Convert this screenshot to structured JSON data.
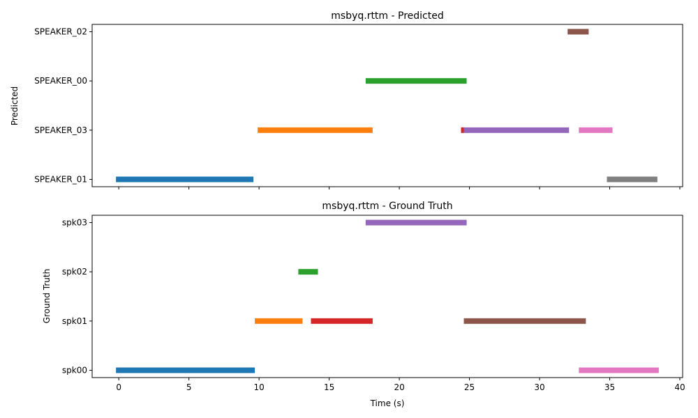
{
  "chart_data": [
    {
      "type": "timeline",
      "title": "msbyq.rttm - Predicted",
      "ylabel": "Predicted",
      "xlabel": "",
      "show_x_tick_labels": false,
      "xlim": [
        -1.9,
        40.2
      ],
      "x_ticks": [
        0,
        5,
        10,
        15,
        20,
        25,
        30,
        35,
        40
      ],
      "categories": [
        "SPEAKER_01",
        "SPEAKER_03",
        "SPEAKER_00",
        "SPEAKER_02"
      ],
      "segments": [
        {
          "speaker": "SPEAKER_01",
          "start": -0.2,
          "end": 9.6,
          "color": "#1f77b4"
        },
        {
          "speaker": "SPEAKER_03",
          "start": 9.9,
          "end": 18.1,
          "color": "#ff7f0e"
        },
        {
          "speaker": "SPEAKER_00",
          "start": 17.6,
          "end": 24.8,
          "color": "#2ca02c"
        },
        {
          "speaker": "SPEAKER_03",
          "start": 24.4,
          "end": 24.6,
          "color": "#d62728"
        },
        {
          "speaker": "SPEAKER_03",
          "start": 24.6,
          "end": 32.1,
          "color": "#9467bd"
        },
        {
          "speaker": "SPEAKER_02",
          "start": 32.0,
          "end": 33.5,
          "color": "#8c564b"
        },
        {
          "speaker": "SPEAKER_03",
          "start": 32.8,
          "end": 35.2,
          "color": "#e377c2"
        },
        {
          "speaker": "SPEAKER_01",
          "start": 34.8,
          "end": 38.4,
          "color": "#7f7f7f"
        }
      ]
    },
    {
      "type": "timeline",
      "title": "msbyq.rttm - Ground Truth",
      "ylabel": "Ground Truth",
      "xlabel": "Time (s)",
      "show_x_tick_labels": true,
      "xlim": [
        -1.9,
        40.2
      ],
      "x_ticks": [
        0,
        5,
        10,
        15,
        20,
        25,
        30,
        35,
        40
      ],
      "categories": [
        "spk00",
        "spk01",
        "spk02",
        "spk03"
      ],
      "segments": [
        {
          "speaker": "spk00",
          "start": -0.2,
          "end": 9.7,
          "color": "#1f77b4"
        },
        {
          "speaker": "spk01",
          "start": 9.7,
          "end": 13.1,
          "color": "#ff7f0e"
        },
        {
          "speaker": "spk02",
          "start": 12.8,
          "end": 14.2,
          "color": "#2ca02c"
        },
        {
          "speaker": "spk01",
          "start": 13.7,
          "end": 18.1,
          "color": "#d62728"
        },
        {
          "speaker": "spk03",
          "start": 17.6,
          "end": 24.8,
          "color": "#9467bd"
        },
        {
          "speaker": "spk01",
          "start": 24.6,
          "end": 33.3,
          "color": "#8c564b"
        },
        {
          "speaker": "spk00",
          "start": 32.8,
          "end": 38.5,
          "color": "#e377c2"
        }
      ]
    }
  ]
}
